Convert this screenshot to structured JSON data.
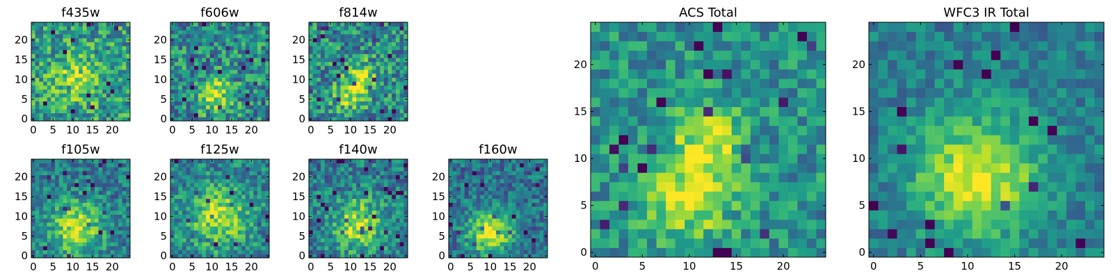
{
  "chart_data": [
    {
      "type": "heatmap",
      "title": "f435w",
      "shape": [
        25,
        25
      ],
      "seed": 11,
      "centers": [
        [
          11,
          10,
          4.0,
          0.3
        ]
      ],
      "noise": 0.55,
      "base": 0.55,
      "xticks": [
        "0",
        "5",
        "10",
        "15",
        "20"
      ],
      "yticks": [
        "0",
        "5",
        "10",
        "15",
        "20"
      ],
      "xlim": [
        0,
        24
      ],
      "ylim": [
        0,
        24
      ]
    },
    {
      "type": "heatmap",
      "title": "f606w",
      "shape": [
        25,
        25
      ],
      "seed": 23,
      "centers": [
        [
          11,
          6,
          3.0,
          0.45
        ]
      ],
      "noise": 0.55,
      "base": 0.48,
      "xticks": [
        "0",
        "5",
        "10",
        "15",
        "20"
      ],
      "yticks": [
        "0",
        "5",
        "10",
        "15",
        "20"
      ],
      "xlim": [
        0,
        24
      ],
      "ylim": [
        0,
        24
      ]
    },
    {
      "type": "heatmap",
      "title": "f814w",
      "shape": [
        25,
        25
      ],
      "seed": 37,
      "centers": [
        [
          10,
          6,
          2.8,
          0.4
        ],
        [
          13,
          11,
          2.5,
          0.4
        ]
      ],
      "noise": 0.55,
      "base": 0.48,
      "xticks": [
        "0",
        "5",
        "10",
        "15",
        "20"
      ],
      "yticks": [
        "0",
        "5",
        "10",
        "15",
        "20"
      ],
      "xlim": [
        0,
        24
      ],
      "ylim": [
        0,
        24
      ]
    },
    {
      "type": "heatmap",
      "title": "f105w",
      "shape": [
        25,
        25
      ],
      "seed": 41,
      "centers": [
        [
          11,
          7,
          4.5,
          0.5
        ]
      ],
      "noise": 0.42,
      "base": 0.42,
      "xticks": [
        "0",
        "5",
        "10",
        "15",
        "20"
      ],
      "yticks": [
        "0",
        "5",
        "10",
        "15",
        "20"
      ],
      "xlim": [
        0,
        24
      ],
      "ylim": [
        0,
        24
      ]
    },
    {
      "type": "heatmap",
      "title": "f125w",
      "shape": [
        25,
        25
      ],
      "seed": 53,
      "centers": [
        [
          12,
          10,
          5.0,
          0.45
        ]
      ],
      "noise": 0.45,
      "base": 0.45,
      "xticks": [
        "0",
        "5",
        "10",
        "15",
        "20"
      ],
      "yticks": [
        "0",
        "5",
        "10",
        "15",
        "20"
      ],
      "xlim": [
        0,
        24
      ],
      "ylim": [
        0,
        24
      ]
    },
    {
      "type": "heatmap",
      "title": "f140w",
      "shape": [
        25,
        25
      ],
      "seed": 67,
      "centers": [
        [
          12,
          8,
          4.5,
          0.45
        ]
      ],
      "noise": 0.45,
      "base": 0.42,
      "xticks": [
        "0",
        "5",
        "10",
        "15",
        "20"
      ],
      "yticks": [
        "0",
        "5",
        "10",
        "15",
        "20"
      ],
      "xlim": [
        0,
        24
      ],
      "ylim": [
        0,
        24
      ]
    },
    {
      "type": "heatmap",
      "title": "f160w",
      "shape": [
        25,
        25
      ],
      "seed": 79,
      "centers": [
        [
          10,
          6,
          4.0,
          0.55
        ]
      ],
      "noise": 0.4,
      "base": 0.38,
      "xticks": [
        "0",
        "5",
        "10",
        "15",
        "20"
      ],
      "yticks": [
        "0",
        "5",
        "10",
        "15",
        "20"
      ],
      "xlim": [
        0,
        24
      ],
      "ylim": [
        0,
        24
      ]
    },
    {
      "type": "heatmap",
      "title": "ACS Total",
      "shape": [
        25,
        25
      ],
      "seed": 97,
      "centers": [
        [
          10,
          6,
          3.2,
          0.45
        ],
        [
          12,
          12,
          2.5,
          0.4
        ]
      ],
      "noise": 0.4,
      "base": 0.5,
      "xticks": [
        "0",
        "5",
        "10",
        "15",
        "20"
      ],
      "yticks": [
        "0",
        "5",
        "10",
        "15",
        "20"
      ],
      "xlim": [
        0,
        24
      ],
      "ylim": [
        0,
        24
      ]
    },
    {
      "type": "heatmap",
      "title": "WFC3 IR Total",
      "shape": [
        25,
        25
      ],
      "seed": 113,
      "centers": [
        [
          11,
          8,
          4.5,
          0.55
        ]
      ],
      "noise": 0.3,
      "base": 0.42,
      "xticks": [
        "0",
        "5",
        "10",
        "15",
        "20"
      ],
      "yticks": [
        "0",
        "5",
        "10",
        "15",
        "20"
      ],
      "xlim": [
        0,
        24
      ],
      "ylim": [
        0,
        24
      ]
    }
  ],
  "colormap": [
    "#440154",
    "#482878",
    "#3e4989",
    "#31688e",
    "#26828e",
    "#1f9e89",
    "#35b779",
    "#6ece58",
    "#b5de2b",
    "#fde725"
  ]
}
